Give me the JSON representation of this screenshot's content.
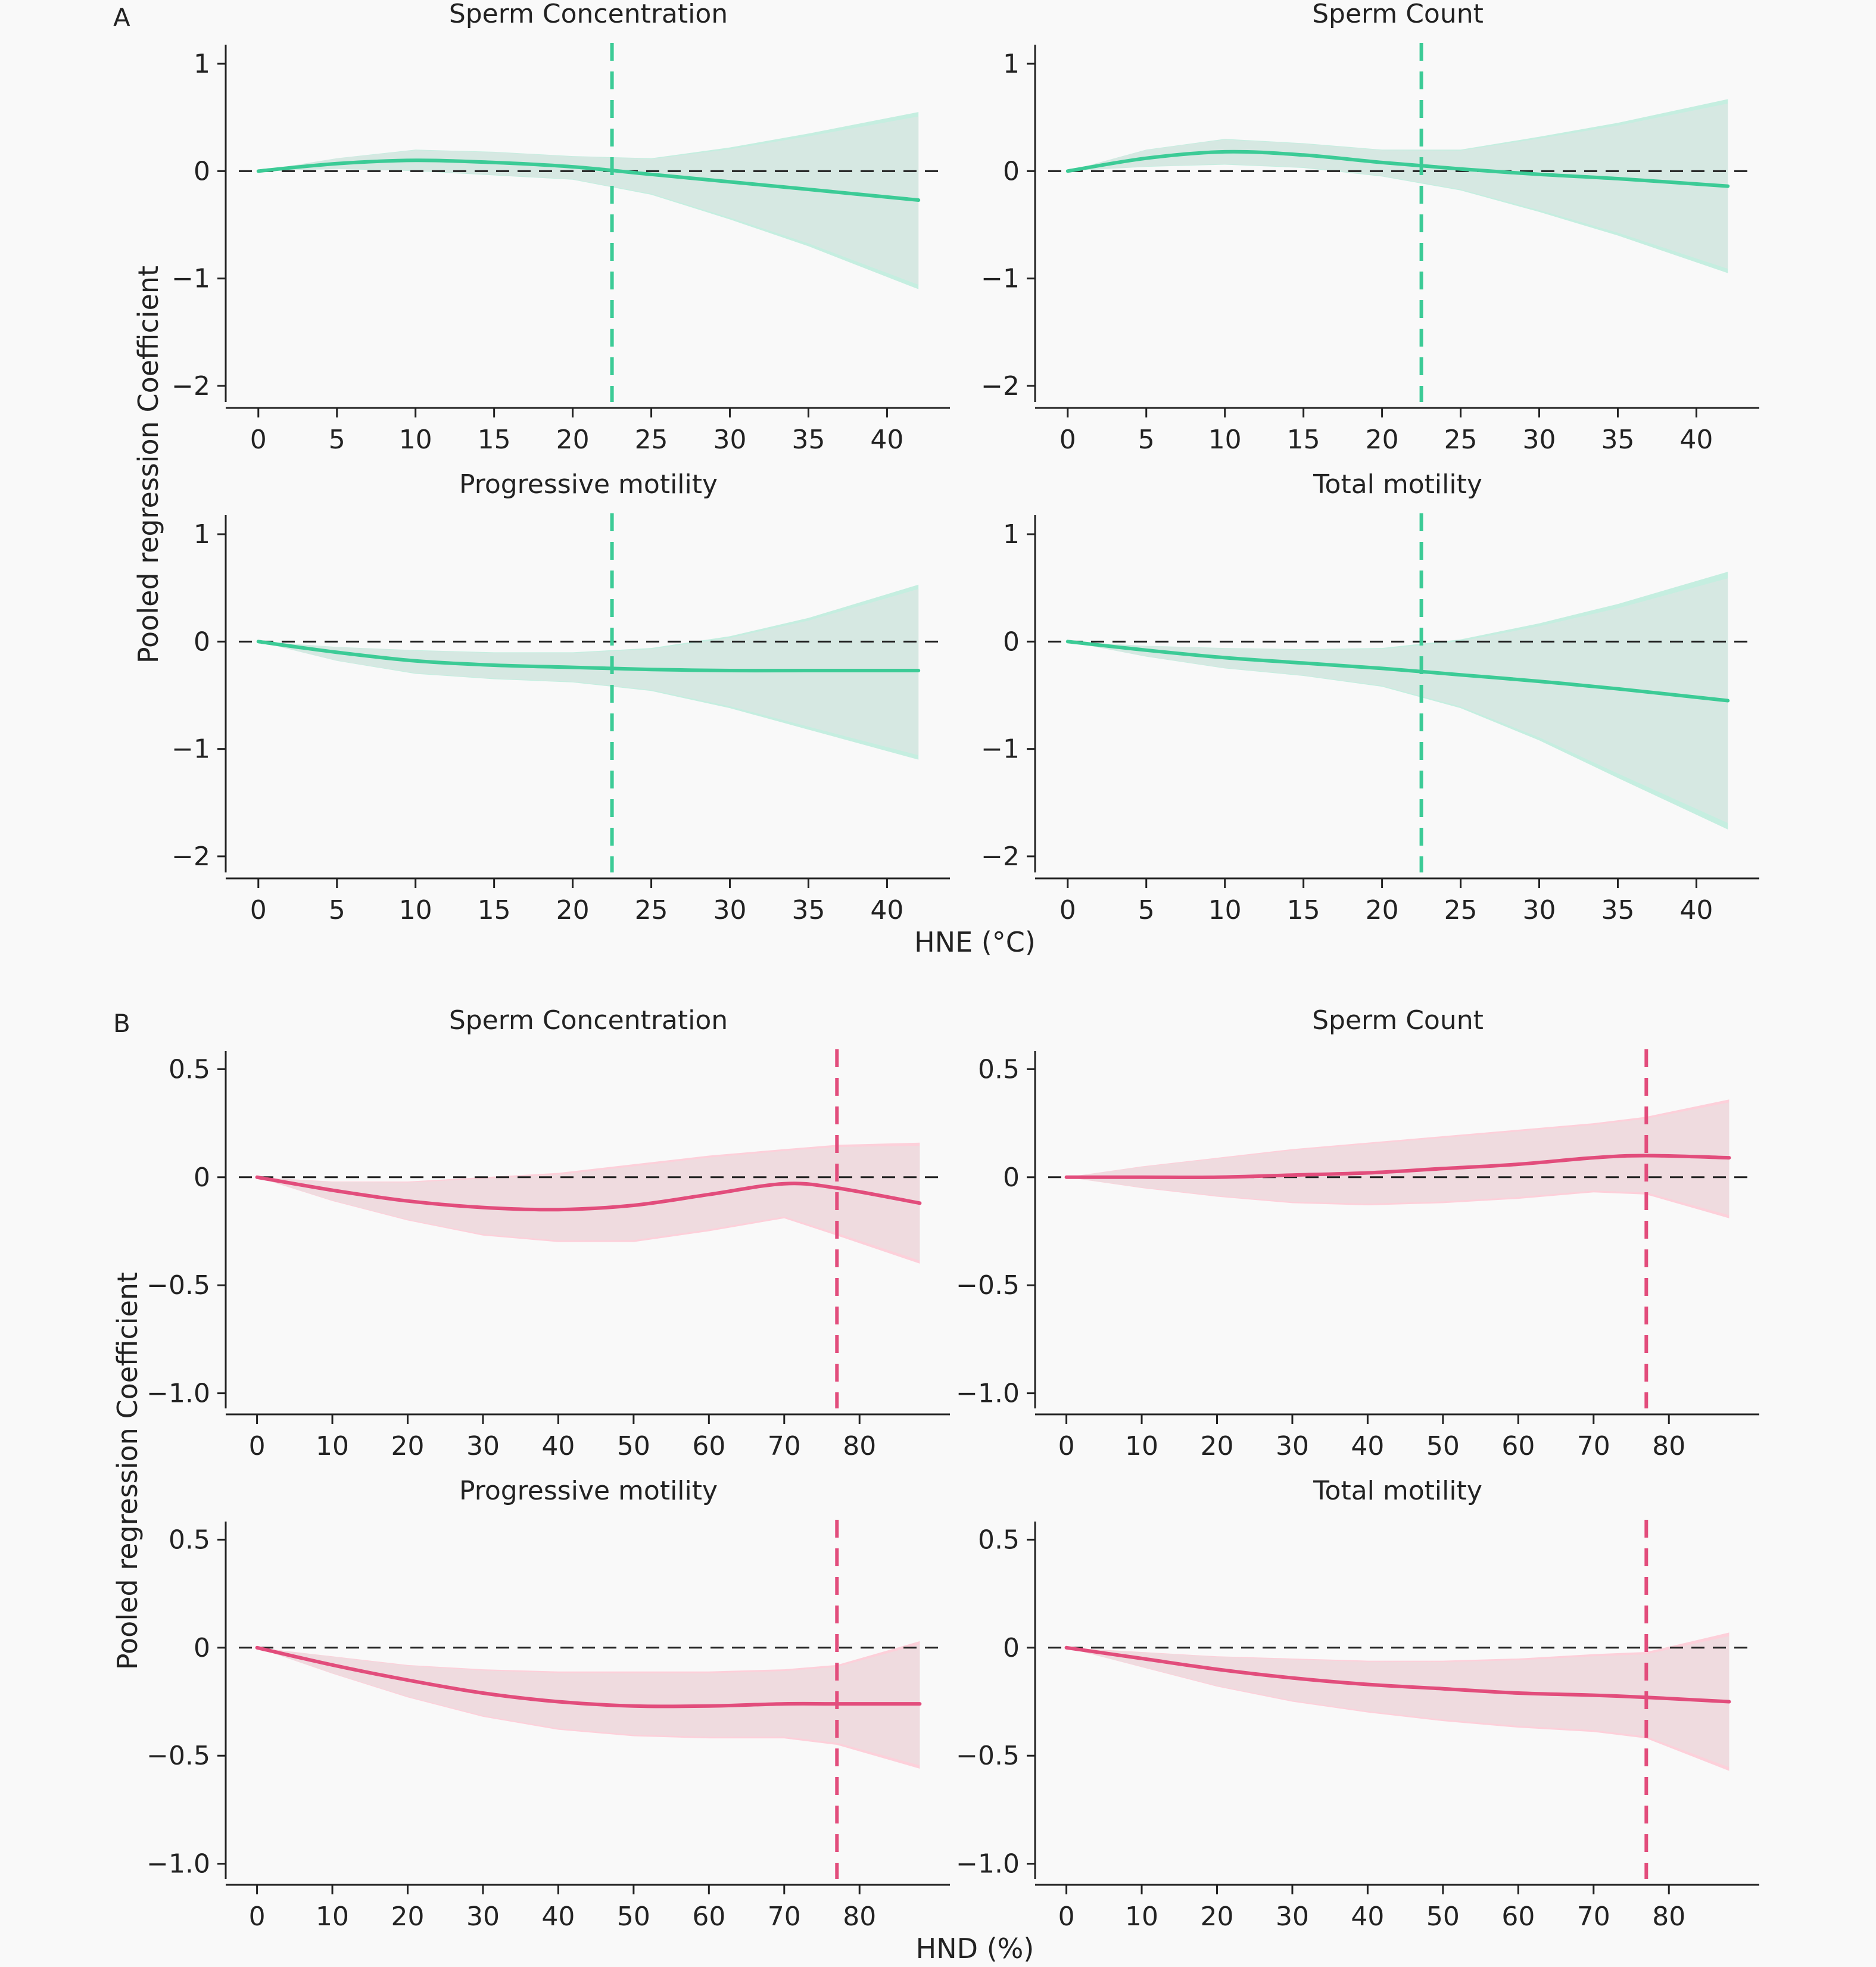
{
  "figure": {
    "panel_labels": [
      "A",
      "B"
    ],
    "y_axis_label": "Pooled regression Coefficient",
    "x_axis_labels": {
      "A": "HNE (°C)",
      "B": "HND (%)"
    }
  },
  "colors": {
    "A_line": "#3ccb96",
    "A_band": "#c5eee0",
    "B_line": "#e24d7c",
    "B_band": "#fdd0da",
    "gray_band": "#e4e4e4",
    "zero_line": "#222222",
    "axis": "#222222"
  },
  "chart_data": [
    {
      "type": "line",
      "group": "A",
      "title": "Sperm Concentration",
      "xlim": [
        -2,
        44
      ],
      "ylim": [
        -2.15,
        1.15
      ],
      "xticks": [
        0,
        5,
        10,
        15,
        20,
        25,
        30,
        35,
        40
      ],
      "yticks": [
        1,
        0,
        -1,
        -2
      ],
      "ytick_labels": [
        "1",
        "0",
        "−1",
        "−2"
      ],
      "threshold_x": 22.5,
      "x": [
        0,
        5,
        10,
        15,
        20,
        25,
        30,
        35,
        42
      ],
      "y": [
        0,
        0.07,
        0.1,
        0.08,
        0.04,
        -0.03,
        -0.1,
        -0.17,
        -0.27
      ],
      "upper": [
        0,
        0.12,
        0.2,
        0.18,
        0.14,
        0.12,
        0.22,
        0.35,
        0.55
      ],
      "lower": [
        0,
        0.02,
        0.0,
        -0.04,
        -0.08,
        -0.22,
        -0.45,
        -0.7,
        -1.1
      ]
    },
    {
      "type": "line",
      "group": "A",
      "title": "Sperm Count",
      "xlim": [
        -2,
        44
      ],
      "ylim": [
        -2.15,
        1.15
      ],
      "xticks": [
        0,
        5,
        10,
        15,
        20,
        25,
        30,
        35,
        40
      ],
      "yticks": [
        1,
        0,
        -1,
        -2
      ],
      "ytick_labels": [
        "1",
        "0",
        "−1",
        "−2"
      ],
      "threshold_x": 22.5,
      "x": [
        0,
        5,
        10,
        15,
        20,
        25,
        30,
        35,
        42
      ],
      "y": [
        0,
        0.12,
        0.18,
        0.15,
        0.08,
        0.02,
        -0.03,
        -0.07,
        -0.14
      ],
      "upper": [
        0,
        0.2,
        0.3,
        0.26,
        0.2,
        0.2,
        0.32,
        0.45,
        0.67
      ],
      "lower": [
        0,
        0.04,
        0.06,
        0.03,
        -0.05,
        -0.18,
        -0.38,
        -0.6,
        -0.95
      ]
    },
    {
      "type": "line",
      "group": "A",
      "title": "Progressive motility",
      "xlim": [
        -2,
        44
      ],
      "ylim": [
        -2.15,
        1.15
      ],
      "xticks": [
        0,
        5,
        10,
        15,
        20,
        25,
        30,
        35,
        40
      ],
      "yticks": [
        1,
        0,
        -1,
        -2
      ],
      "ytick_labels": [
        "1",
        "0",
        "−1",
        "−2"
      ],
      "threshold_x": 22.5,
      "x": [
        0,
        5,
        10,
        15,
        20,
        25,
        30,
        35,
        42
      ],
      "y": [
        0,
        -0.1,
        -0.18,
        -0.22,
        -0.24,
        -0.26,
        -0.27,
        -0.27,
        -0.27
      ],
      "upper": [
        0,
        -0.05,
        -0.08,
        -0.1,
        -0.1,
        -0.06,
        0.05,
        0.22,
        0.53
      ],
      "lower": [
        0,
        -0.18,
        -0.3,
        -0.35,
        -0.38,
        -0.46,
        -0.62,
        -0.82,
        -1.1
      ]
    },
    {
      "type": "line",
      "group": "A",
      "title": "Total motility",
      "xlim": [
        -2,
        44
      ],
      "ylim": [
        -2.15,
        1.15
      ],
      "xticks": [
        0,
        5,
        10,
        15,
        20,
        25,
        30,
        35,
        40
      ],
      "yticks": [
        1,
        0,
        -1,
        -2
      ],
      "ytick_labels": [
        "1",
        "0",
        "−1",
        "−2"
      ],
      "threshold_x": 22.5,
      "x": [
        0,
        5,
        10,
        15,
        20,
        25,
        30,
        35,
        42
      ],
      "y": [
        0,
        -0.08,
        -0.15,
        -0.2,
        -0.25,
        -0.31,
        -0.37,
        -0.44,
        -0.55
      ],
      "upper": [
        0,
        -0.04,
        -0.06,
        -0.07,
        -0.06,
        0.02,
        0.17,
        0.35,
        0.65
      ],
      "lower": [
        0,
        -0.14,
        -0.25,
        -0.32,
        -0.42,
        -0.62,
        -0.92,
        -1.27,
        -1.75
      ]
    },
    {
      "type": "line",
      "group": "B",
      "title": "Sperm Concentration",
      "xlim": [
        -4,
        92
      ],
      "ylim": [
        -1.07,
        0.57
      ],
      "xticks": [
        0,
        10,
        20,
        30,
        40,
        50,
        60,
        70,
        80
      ],
      "yticks": [
        0.5,
        0,
        -0.5,
        -1.0
      ],
      "ytick_labels": [
        "0.5",
        "0",
        "−0.5",
        "−1.0"
      ],
      "threshold_x": 77,
      "x": [
        0,
        10,
        20,
        30,
        40,
        50,
        60,
        70,
        77,
        88
      ],
      "y": [
        0,
        -0.06,
        -0.11,
        -0.14,
        -0.15,
        -0.13,
        -0.08,
        -0.03,
        -0.05,
        -0.12
      ],
      "upper": [
        0,
        -0.02,
        -0.02,
        0.0,
        0.02,
        0.06,
        0.1,
        0.13,
        0.15,
        0.16
      ],
      "lower": [
        0,
        -0.11,
        -0.2,
        -0.27,
        -0.3,
        -0.3,
        -0.25,
        -0.19,
        -0.27,
        -0.4
      ]
    },
    {
      "type": "line",
      "group": "B",
      "title": "Sperm Count",
      "xlim": [
        -4,
        92
      ],
      "ylim": [
        -1.07,
        0.57
      ],
      "xticks": [
        0,
        10,
        20,
        30,
        40,
        50,
        60,
        70,
        80
      ],
      "yticks": [
        0.5,
        0,
        -0.5,
        -1.0
      ],
      "ytick_labels": [
        "0.5",
        "0",
        "−0.5",
        "−1.0"
      ],
      "threshold_x": 77,
      "x": [
        0,
        10,
        20,
        30,
        40,
        50,
        60,
        70,
        77,
        88
      ],
      "y": [
        0,
        0.0,
        0.0,
        0.01,
        0.02,
        0.04,
        0.06,
        0.09,
        0.1,
        0.09
      ],
      "upper": [
        0,
        0.05,
        0.09,
        0.13,
        0.16,
        0.19,
        0.22,
        0.25,
        0.28,
        0.36
      ],
      "lower": [
        0,
        -0.05,
        -0.09,
        -0.12,
        -0.13,
        -0.12,
        -0.1,
        -0.07,
        -0.08,
        -0.19
      ]
    },
    {
      "type": "line",
      "group": "B",
      "title": "Progressive motility",
      "xlim": [
        -4,
        92
      ],
      "ylim": [
        -1.07,
        0.57
      ],
      "xticks": [
        0,
        10,
        20,
        30,
        40,
        50,
        60,
        70,
        80
      ],
      "yticks": [
        0.5,
        0,
        -0.5,
        -1.0
      ],
      "ytick_labels": [
        "0.5",
        "0",
        "−0.5",
        "−1.0"
      ],
      "threshold_x": 77,
      "x": [
        0,
        10,
        20,
        30,
        40,
        50,
        60,
        70,
        77,
        88
      ],
      "y": [
        0,
        -0.08,
        -0.15,
        -0.21,
        -0.25,
        -0.27,
        -0.27,
        -0.26,
        -0.26,
        -0.26
      ],
      "upper": [
        0,
        -0.04,
        -0.08,
        -0.1,
        -0.11,
        -0.11,
        -0.11,
        -0.1,
        -0.08,
        0.03
      ],
      "lower": [
        0,
        -0.12,
        -0.23,
        -0.32,
        -0.38,
        -0.41,
        -0.42,
        -0.42,
        -0.45,
        -0.56
      ]
    },
    {
      "type": "line",
      "group": "B",
      "title": "Total motility",
      "xlim": [
        -4,
        92
      ],
      "ylim": [
        -1.07,
        0.57
      ],
      "xticks": [
        0,
        10,
        20,
        30,
        40,
        50,
        60,
        70,
        80
      ],
      "yticks": [
        0.5,
        0,
        -0.5,
        -1.0
      ],
      "ytick_labels": [
        "0.5",
        "0",
        "−0.5",
        "−1.0"
      ],
      "threshold_x": 77,
      "x": [
        0,
        10,
        20,
        30,
        40,
        50,
        60,
        70,
        77,
        88
      ],
      "y": [
        0,
        -0.05,
        -0.1,
        -0.14,
        -0.17,
        -0.19,
        -0.21,
        -0.22,
        -0.23,
        -0.25
      ],
      "upper": [
        0,
        -0.02,
        -0.04,
        -0.05,
        -0.06,
        -0.06,
        -0.05,
        -0.03,
        -0.02,
        0.07
      ],
      "lower": [
        0,
        -0.09,
        -0.18,
        -0.25,
        -0.3,
        -0.34,
        -0.37,
        -0.39,
        -0.42,
        -0.57
      ]
    }
  ]
}
